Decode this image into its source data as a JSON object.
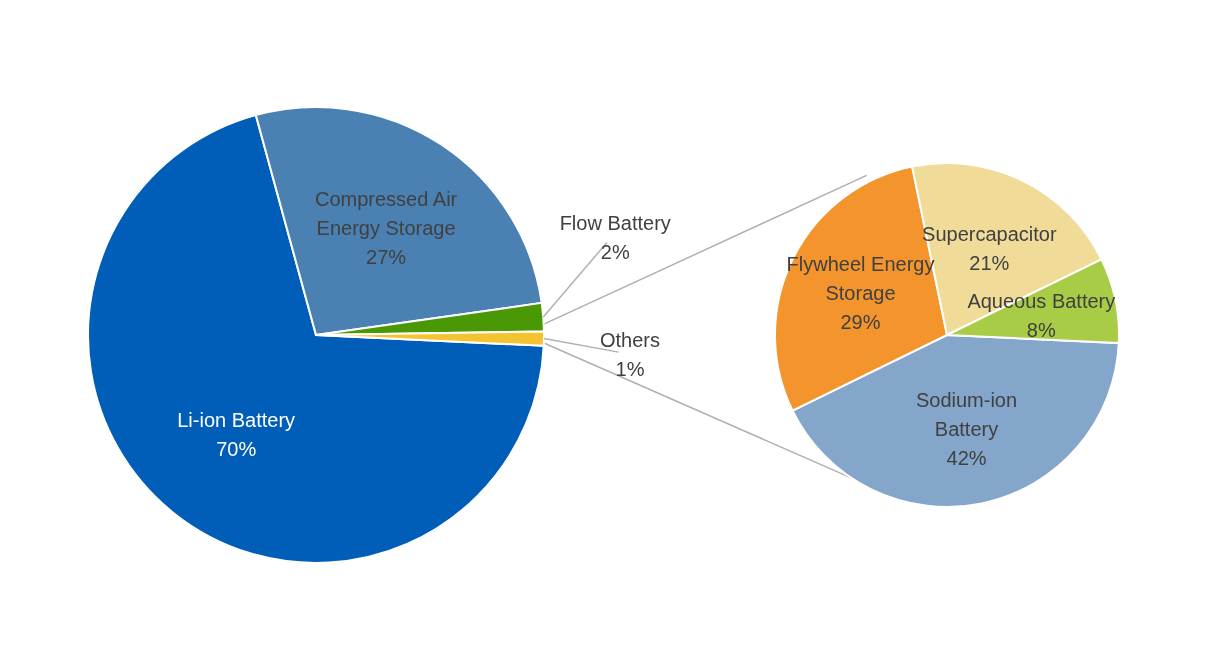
{
  "chart_data": [
    {
      "type": "pie",
      "categories": [
        "Li-ion Battery",
        "Compressed Air Energy Storage",
        "Flow Battery",
        "Others"
      ],
      "values": [
        70,
        27,
        2,
        1
      ],
      "colors": [
        "#005eb8",
        "#4a80b2",
        "#4a9806",
        "#f4c430"
      ],
      "value_labels": [
        "70%",
        "27%",
        "2%",
        "1%"
      ],
      "legend": false
    },
    {
      "type": "pie",
      "categories": [
        "Sodium-ion Battery",
        "Flywheel Energy Storage",
        "Supercapacitor",
        "Aqueous Battery"
      ],
      "values": [
        42,
        29,
        21,
        8
      ],
      "colors": [
        "#84a6cb",
        "#f3952c",
        "#f0dc98",
        "#a8cc45"
      ],
      "value_labels": [
        "42%",
        "29%",
        "21%",
        "8%"
      ],
      "legend": false
    }
  ]
}
